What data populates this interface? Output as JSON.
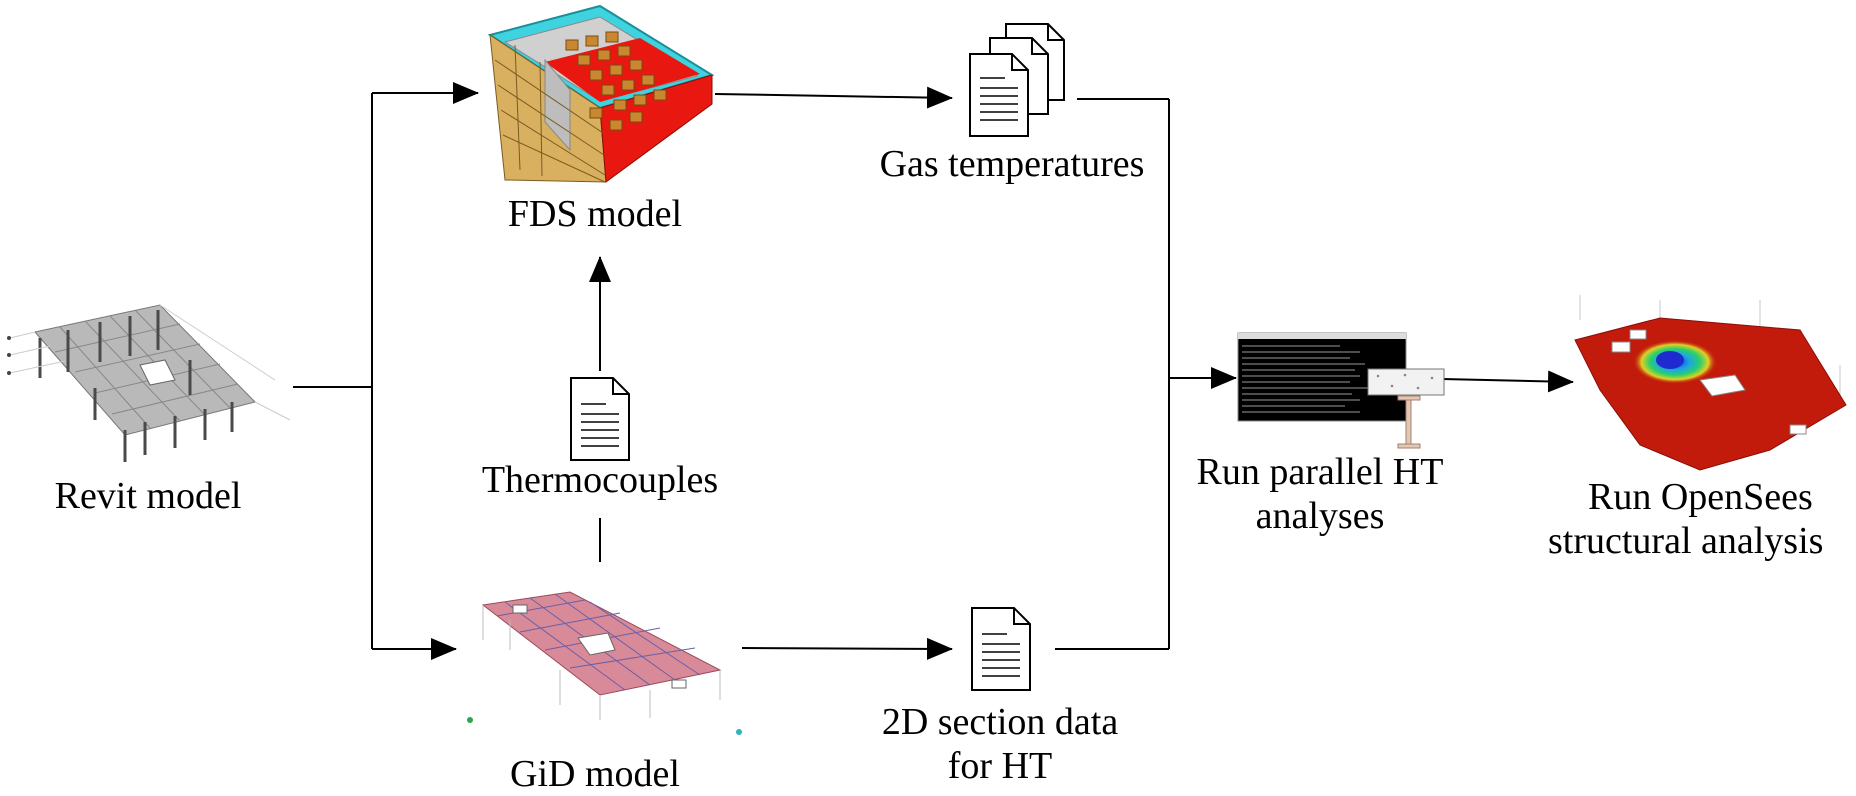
{
  "nodes": {
    "revit": {
      "label": "Revit model"
    },
    "fds": {
      "label": "FDS model"
    },
    "gas": {
      "label": "Gas temperatures"
    },
    "thermo": {
      "label": "Thermocouples"
    },
    "gid": {
      "label": "GiD model"
    },
    "section": {
      "label_line1": "2D section data",
      "label_line2": "for HT"
    },
    "ht": {
      "label_line1": "Run parallel HT",
      "label_line2": "analyses"
    },
    "opensees": {
      "label_line1": "Run OpenSees",
      "label_line2": "structural analysis"
    }
  },
  "colors": {
    "line": "#000000",
    "fds_cyan": "#3fd3df",
    "fds_red": "#e8170f",
    "fds_wood": "#d9b060",
    "gid_pink": "#d98a98",
    "gid_grid": "#6a5fa8",
    "terminal_bg": "#000000",
    "heat_red": "#c21b0c",
    "heat_blue": "#1f2ad0"
  },
  "icons": [
    "revit-3d-model",
    "fds-compartment-model",
    "document-stack-icon",
    "document-icon",
    "gid-mesh-model",
    "terminal-window",
    "steel-beam-section",
    "heat-contour-slab"
  ]
}
